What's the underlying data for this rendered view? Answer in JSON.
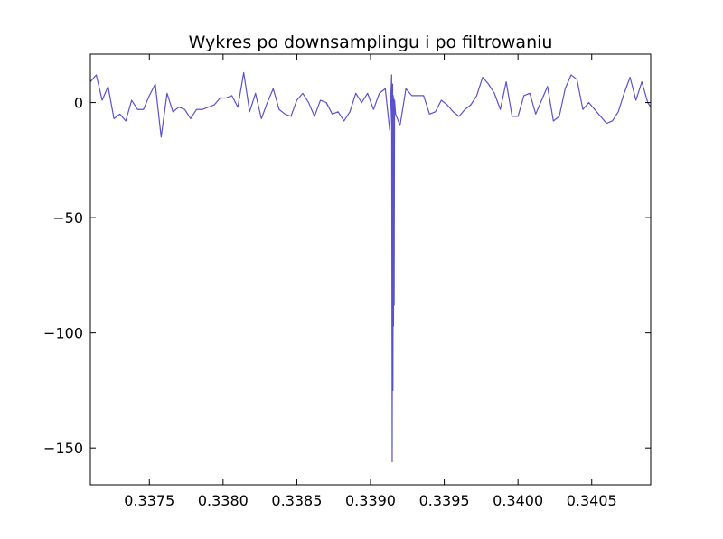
{
  "chart_data": {
    "type": "line",
    "title": "Wykres po downsamplingu i po filtrowaniu",
    "xlabel": "",
    "ylabel": "",
    "xlim": [
      0.3371,
      0.3409
    ],
    "ylim": [
      -166,
      21
    ],
    "xticks": [
      0.3375,
      0.338,
      0.3385,
      0.339,
      0.3395,
      0.34,
      0.3405
    ],
    "xtick_labels": [
      "0.3375",
      "0.3380",
      "0.3385",
      "0.3390",
      "0.3395",
      "0.3400",
      "0.3405"
    ],
    "yticks": [
      0,
      -50,
      -100,
      -150
    ],
    "ytick_labels": [
      "0",
      "−50",
      "−100",
      "−150"
    ],
    "grid": false,
    "legend": "none",
    "line_color": "#5a52cc",
    "series": [
      {
        "x": [
          0.3371,
          0.33714,
          0.33718,
          0.33722,
          0.33726,
          0.3373,
          0.33734,
          0.33738,
          0.33742,
          0.33746,
          0.3375,
          0.33754,
          0.33758,
          0.33762,
          0.33766,
          0.3377,
          0.33774,
          0.33778,
          0.33782,
          0.33786,
          0.3379,
          0.33794,
          0.33798,
          0.33802,
          0.33806,
          0.3381,
          0.33814,
          0.33818,
          0.33822,
          0.33826,
          0.3383,
          0.33834,
          0.33838,
          0.33842,
          0.33846,
          0.3385,
          0.33854,
          0.33858,
          0.33862,
          0.33866,
          0.3387,
          0.33874,
          0.33878,
          0.33882,
          0.33886,
          0.3389,
          0.33894,
          0.33898,
          0.33902,
          0.33906,
          0.3391,
          0.33913,
          0.339143,
          0.339147,
          0.33915,
          0.339152,
          0.339154,
          0.339156,
          0.339158,
          0.33916,
          0.339163,
          0.33917,
          0.3392,
          0.33924,
          0.33928,
          0.33932,
          0.33936,
          0.3394,
          0.33944,
          0.33948,
          0.33952,
          0.33956,
          0.3396,
          0.33964,
          0.33968,
          0.33972,
          0.33976,
          0.3398,
          0.33984,
          0.33988,
          0.33992,
          0.33996,
          0.34,
          0.34004,
          0.34008,
          0.34012,
          0.34016,
          0.3402,
          0.34024,
          0.34028,
          0.34032,
          0.34036,
          0.3404,
          0.34044,
          0.34048,
          0.34052,
          0.34056,
          0.3406,
          0.34064,
          0.34068,
          0.34072,
          0.34076,
          0.3408,
          0.34084,
          0.34088,
          0.3409
        ],
        "y": [
          9,
          12,
          1,
          7,
          -7,
          -5,
          -8,
          1,
          -3,
          -3,
          3,
          8,
          -15,
          4,
          -4,
          -2,
          -3,
          -7,
          -3,
          -3,
          -2,
          -1,
          2,
          2,
          3,
          -2,
          13,
          -4,
          4,
          -7,
          0,
          6,
          -3,
          -5,
          -6,
          1,
          4,
          0,
          -6,
          1,
          0,
          -5,
          -4,
          -8,
          -4,
          4,
          0,
          4,
          -3,
          4,
          6,
          -12,
          12,
          -156,
          8,
          -125,
          3,
          -97,
          2,
          -88,
          1,
          -5,
          -10,
          6,
          3,
          3,
          3,
          -5,
          -4,
          1,
          -1,
          -4,
          -6,
          -3,
          -1,
          3,
          11,
          8,
          4,
          -3,
          9,
          -6,
          -6,
          3,
          4,
          -5,
          1,
          7,
          -8,
          -6,
          6,
          12,
          10,
          -3,
          0,
          -3,
          -6,
          -9,
          -8,
          -4,
          4,
          11,
          1,
          9,
          0,
          -2
        ]
      }
    ]
  }
}
